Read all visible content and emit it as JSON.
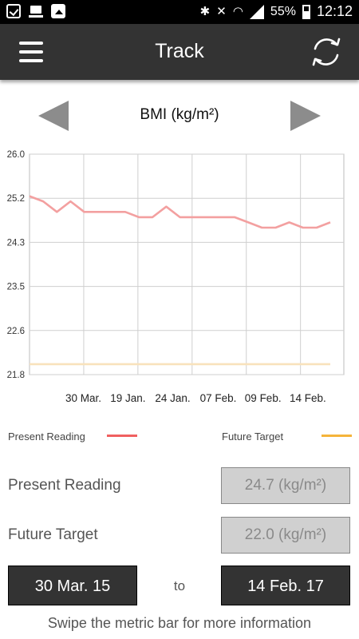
{
  "statusbar": {
    "icons": [
      "check-icon",
      "upload-icon",
      "image-icon",
      "bluetooth-icon",
      "mute-icon",
      "wifi-icon",
      "signal-icon",
      "battery-icon"
    ],
    "battery": "55%",
    "time": "12:12"
  },
  "appbar": {
    "title": "Track",
    "left_icon": "menu-icon",
    "right_icon": "sync-icon"
  },
  "metric": {
    "title": "BMI (kg/m²)"
  },
  "chart_data": {
    "type": "line",
    "ylim": [
      21.8,
      26.0
    ],
    "y_ticks": [
      "26.0",
      "25.2",
      "24.3",
      "23.5",
      "22.6",
      "21.8"
    ],
    "x_ticks": [
      "30 Mar.",
      "19 Jan.",
      "24 Jan.",
      "07 Feb.",
      "09 Feb.",
      "14 Feb."
    ],
    "grid": true,
    "series": [
      {
        "name": "Present Reading",
        "color": "#f3a0a0",
        "values": [
          25.2,
          25.1,
          24.9,
          25.1,
          24.9,
          24.9,
          24.9,
          24.9,
          24.8,
          24.8,
          25.0,
          24.8,
          24.8,
          24.8,
          24.8,
          24.8,
          24.7,
          24.6,
          24.6,
          24.7,
          24.6,
          24.6,
          24.7
        ]
      },
      {
        "name": "Future Target",
        "color": "#f8e2bc",
        "values": [
          22.0,
          22.0
        ]
      }
    ]
  },
  "legend": {
    "present_label": "Present Reading",
    "present_color": "#f06060",
    "future_label": "Future Target",
    "future_color": "#f5b43a"
  },
  "readings": {
    "present_label": "Present Reading",
    "present_value": "24.7 (kg/m²)",
    "future_label": "Future Target",
    "future_value": "22.0 (kg/m²)"
  },
  "date_range": {
    "start": "30 Mar. 15",
    "separator": "to",
    "end": "14 Feb. 17"
  },
  "hint": "Swipe the metric bar for more information"
}
